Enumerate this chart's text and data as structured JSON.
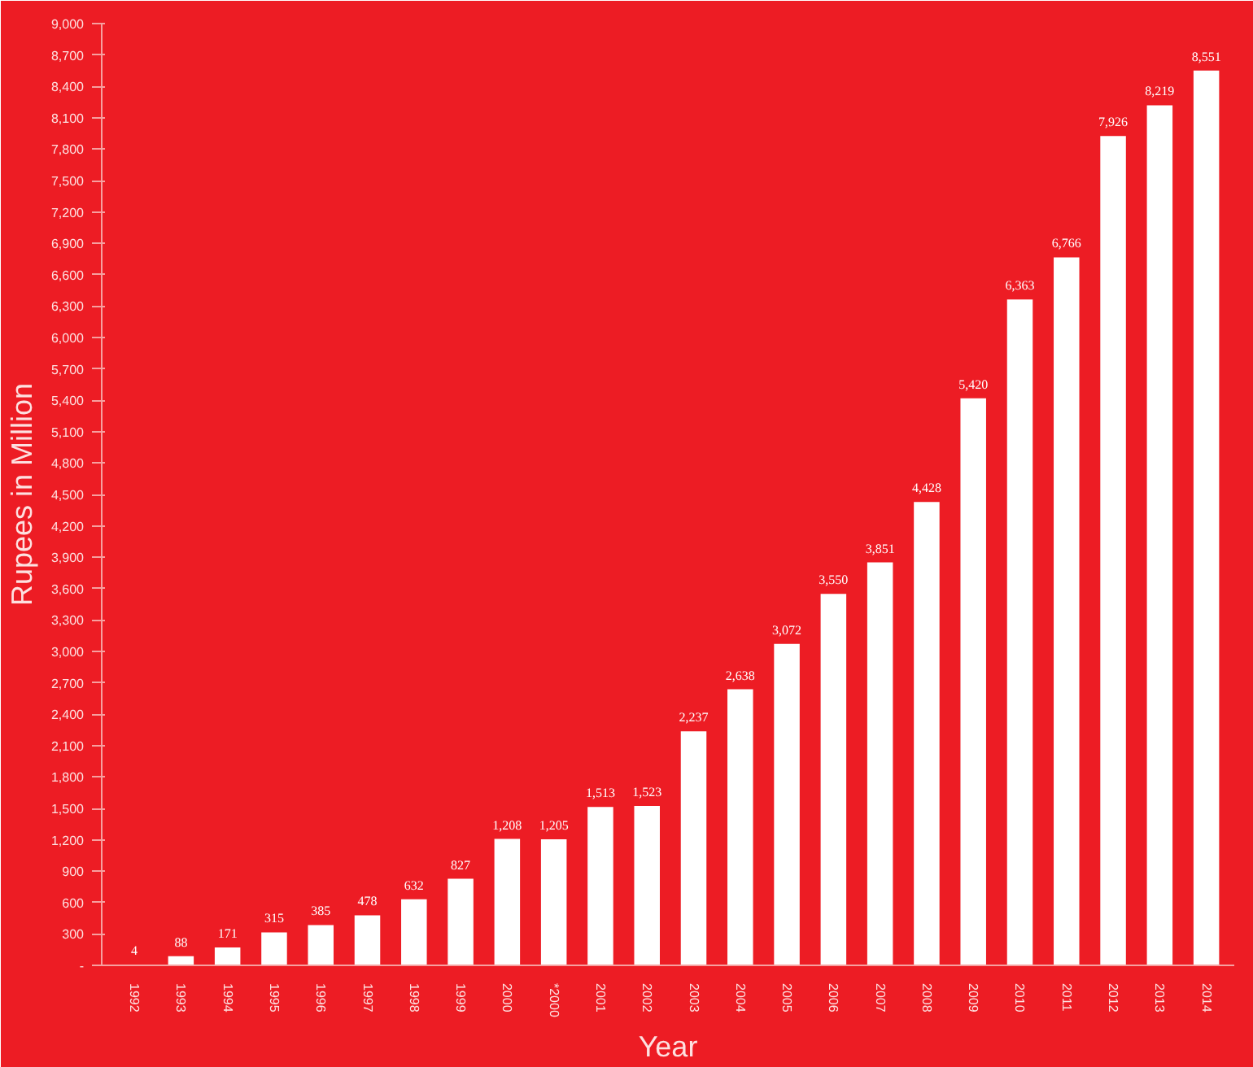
{
  "chart_data": {
    "type": "bar",
    "xlabel": "Year",
    "ylabel": "Rupees in Million",
    "categories": [
      "1992",
      "1993",
      "1994",
      "1995",
      "1996",
      "1997",
      "1998",
      "1999",
      "2000",
      "*2000",
      "2001",
      "2002",
      "2003",
      "2004",
      "2005",
      "2006",
      "2007",
      "2008",
      "2009",
      "2010",
      "2011",
      "2012",
      "2013",
      "2014"
    ],
    "values": [
      4,
      88,
      171,
      315,
      385,
      478,
      632,
      827,
      1208,
      1205,
      1513,
      1523,
      2237,
      2638,
      3072,
      3550,
      3851,
      4428,
      5420,
      6363,
      6766,
      7926,
      8219,
      8551
    ],
    "value_labels": [
      "4",
      "88",
      "171",
      "315",
      "385",
      "478",
      "632",
      "827",
      "1,208",
      "1,205",
      "1,513",
      "1,523",
      "2,237",
      "2,638",
      "3,072",
      "3,550",
      "3,851",
      "4,428",
      "5,420",
      "6,363",
      "6,766",
      "7,926",
      "8,219",
      "8,551"
    ],
    "color": "#ffffff",
    "grid": false,
    "ylim": [
      0,
      9000
    ],
    "yticks": [
      {
        "value": 0,
        "label": "-"
      },
      {
        "value": 300,
        "label": "300"
      },
      {
        "value": 600,
        "label": "600"
      },
      {
        "value": 900,
        "label": "900"
      },
      {
        "value": 1200,
        "label": "1,200"
      },
      {
        "value": 1500,
        "label": "1,500"
      },
      {
        "value": 1800,
        "label": "1,800"
      },
      {
        "value": 2100,
        "label": "2,100"
      },
      {
        "value": 2400,
        "label": "2,400"
      },
      {
        "value": 2700,
        "label": "2,700"
      },
      {
        "value": 3000,
        "label": "3,000"
      },
      {
        "value": 3300,
        "label": "3,300"
      },
      {
        "value": 3600,
        "label": "3,600"
      },
      {
        "value": 3900,
        "label": "3,900"
      },
      {
        "value": 4200,
        "label": "4,200"
      },
      {
        "value": 4500,
        "label": "4,500"
      },
      {
        "value": 4800,
        "label": "4,800"
      },
      {
        "value": 5100,
        "label": "5,100"
      },
      {
        "value": 5400,
        "label": "5,400"
      },
      {
        "value": 5700,
        "label": "5,700"
      },
      {
        "value": 6000,
        "label": "6,000"
      },
      {
        "value": 6300,
        "label": "6,300"
      },
      {
        "value": 6600,
        "label": "6,600"
      },
      {
        "value": 6900,
        "label": "6,900"
      },
      {
        "value": 7200,
        "label": "7,200"
      },
      {
        "value": 7500,
        "label": "7,500"
      },
      {
        "value": 7800,
        "label": "7,800"
      },
      {
        "value": 8100,
        "label": "8,100"
      },
      {
        "value": 8400,
        "label": "8,400"
      },
      {
        "value": 8700,
        "label": "8,700"
      },
      {
        "value": 9000,
        "label": "9,000"
      }
    ]
  }
}
